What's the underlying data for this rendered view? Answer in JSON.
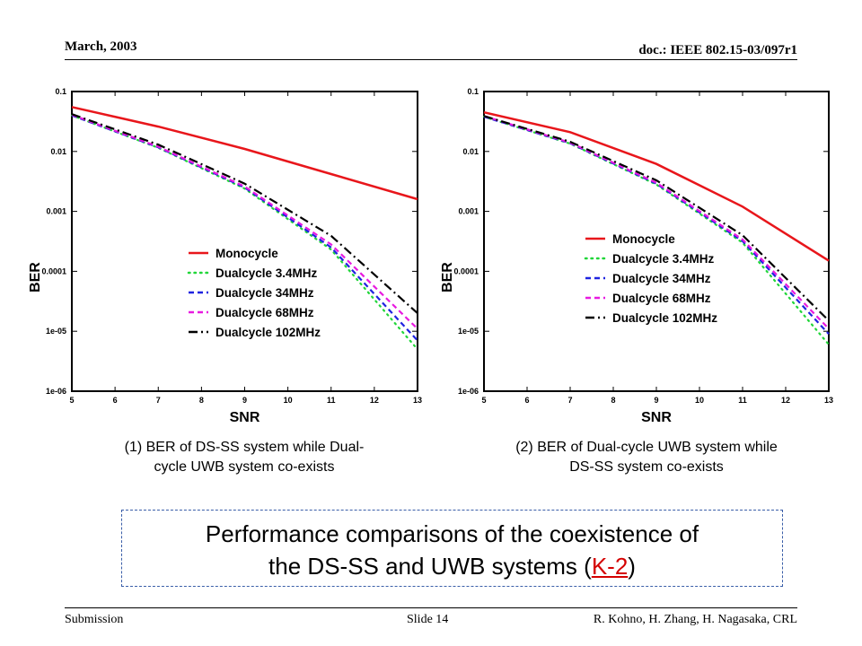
{
  "header": {
    "date": "March, 2003",
    "doc_id": "doc.: IEEE 802.15-03/097r1"
  },
  "footer": {
    "left": "Submission",
    "center": "Slide 14",
    "right": "R. Kohno, H. Zhang, H. Nagasaka, CRL"
  },
  "captions": {
    "left_line1": "(1) BER of DS-SS system while Dual-",
    "left_line2": "cycle UWB system co-exists",
    "right_line1": "(2) BER of Dual-cycle UWB system while",
    "right_line2": "DS-SS system co-exists"
  },
  "summary": {
    "line1": "Performance comparisons of the coexistence of",
    "line2_prefix": "the DS-SS and UWB systems (",
    "link": "K-2",
    "line2_suffix": ")",
    "link_color": "#d40000"
  },
  "chart_data": [
    {
      "type": "line",
      "xlabel": "SNR",
      "ylabel": "BER",
      "log_y": true,
      "xlim": [
        5,
        13
      ],
      "ylim": [
        1e-06,
        0.1
      ],
      "x_ticks": [
        "5",
        "6",
        "7",
        "8",
        "9",
        "10",
        "11",
        "12",
        "13"
      ],
      "y_ticks": [
        "0.1",
        "0.01",
        "0.001",
        "0.0001",
        "1e-05",
        "1e-06"
      ],
      "legend_position": "center-right",
      "x": [
        5,
        7,
        9,
        11,
        13
      ],
      "series": [
        {
          "name": "Monocycle",
          "color": "#e8161b",
          "dash": "solid",
          "values": [
            0.055,
            0.026,
            0.011,
            0.0042,
            0.0016
          ]
        },
        {
          "name": "Dualcycle 3.4MHz",
          "color": "#21d639",
          "dash": "dotted",
          "values": [
            0.04,
            0.0115,
            0.0024,
            0.00023,
            5e-06
          ]
        },
        {
          "name": "Dualcycle 34MHz",
          "color": "#1f23e0",
          "dash": "dashed",
          "values": [
            0.04,
            0.0117,
            0.0025,
            0.00025,
            7e-06
          ]
        },
        {
          "name": "Dualcycle 68MHz",
          "color": "#e81ae0",
          "dash": "dashed",
          "values": [
            0.041,
            0.012,
            0.0026,
            0.00028,
            1.1e-05
          ]
        },
        {
          "name": "Dualcycle 102MHz",
          "color": "#000000",
          "dash": "dashdot",
          "values": [
            0.042,
            0.013,
            0.0029,
            0.00039,
            2e-05
          ]
        }
      ]
    },
    {
      "type": "line",
      "xlabel": "SNR",
      "ylabel": "BER",
      "log_y": true,
      "xlim": [
        5,
        13
      ],
      "ylim": [
        1e-06,
        0.1
      ],
      "x_ticks": [
        "5",
        "6",
        "7",
        "8",
        "9",
        "10",
        "11",
        "12",
        "13"
      ],
      "y_ticks": [
        "0.1",
        "0.01",
        "0.001",
        "0.0001",
        "1e-05",
        "1e-06"
      ],
      "legend_position": "center-right",
      "x": [
        5,
        7,
        9,
        11,
        13
      ],
      "series": [
        {
          "name": "Monocycle",
          "color": "#e8161b",
          "dash": "solid",
          "values": [
            0.045,
            0.021,
            0.0062,
            0.0012,
            0.00015
          ]
        },
        {
          "name": "Dualcycle 3.4MHz",
          "color": "#21d639",
          "dash": "dotted",
          "values": [
            0.038,
            0.0135,
            0.0028,
            0.0003,
            6e-06
          ]
        },
        {
          "name": "Dualcycle 34MHz",
          "color": "#1f23e0",
          "dash": "dashed",
          "values": [
            0.038,
            0.0137,
            0.0029,
            0.00032,
            9e-06
          ]
        },
        {
          "name": "Dualcycle 68MHz",
          "color": "#e81ae0",
          "dash": "dashed",
          "values": [
            0.039,
            0.014,
            0.003,
            0.00034,
            1.1e-05
          ]
        },
        {
          "name": "Dualcycle 102MHz",
          "color": "#000000",
          "dash": "dashdot",
          "values": [
            0.039,
            0.0145,
            0.0033,
            0.0004,
            1.5e-05
          ]
        }
      ]
    }
  ]
}
